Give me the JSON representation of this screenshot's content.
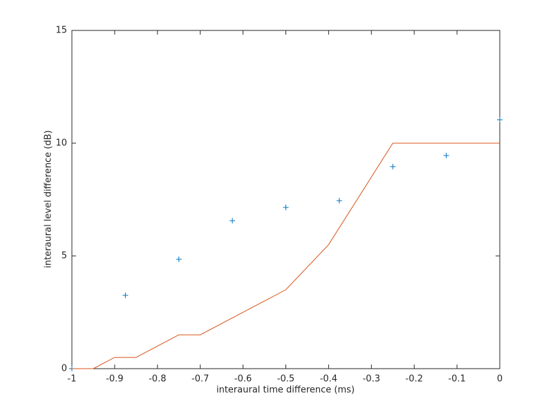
{
  "chart_data": {
    "type": "scatter",
    "xlabel": "interaural time difference (ms)",
    "ylabel": "interaural level difference (dB)",
    "xlim": [
      -1,
      0
    ],
    "ylim": [
      0,
      15
    ],
    "xticks": [
      -1,
      -0.9,
      -0.8,
      -0.7,
      -0.6,
      -0.5,
      -0.4,
      -0.3,
      -0.2,
      -0.1,
      0
    ],
    "yticks": [
      0,
      5,
      10,
      15
    ],
    "grid": false,
    "series": [
      {
        "type": "scatter",
        "color": "#0072bd",
        "x": [
          -1,
          -0.875,
          -0.75,
          -0.625,
          -0.5,
          -0.375,
          -0.25,
          -0.125,
          0
        ],
        "values": [
          0,
          3.25,
          4.85,
          6.56,
          7.15,
          7.45,
          8.96,
          9.45,
          11.04
        ]
      },
      {
        "type": "line",
        "color": "#d95319",
        "x": [
          -1,
          -0.95,
          -0.9,
          -0.85,
          -0.75,
          -0.7,
          -0.5,
          -0.4,
          -0.25,
          0
        ],
        "values": [
          0,
          0,
          0.5,
          0.5,
          1.5,
          1.5,
          3.5,
          5.5,
          10,
          10
        ]
      }
    ]
  }
}
